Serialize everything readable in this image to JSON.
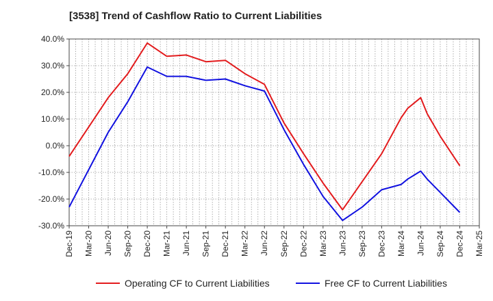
{
  "chart_data": {
    "type": "line",
    "title": "[3538]  Trend of Cashflow Ratio to Current Liabilities",
    "xlabel": "",
    "ylabel": "",
    "ylim": [
      -30,
      40
    ],
    "y_ticks": [
      40,
      30,
      20,
      10,
      0,
      -10,
      -20,
      -30
    ],
    "y_tick_labels": [
      "40.0%",
      "30.0%",
      "20.0%",
      "10.0%",
      "0.0%",
      "-10.0%",
      "-20.0%",
      "-30.0%"
    ],
    "x_ticks": [
      "Dec-19",
      "Mar-20",
      "Jun-20",
      "Sep-20",
      "Dec-20",
      "Mar-21",
      "Jun-21",
      "Sep-21",
      "Dec-21",
      "Mar-22",
      "Jun-22",
      "Sep-22",
      "Dec-22",
      "Mar-23",
      "Jun-23",
      "Sep-23",
      "Dec-23",
      "Mar-24",
      "Jun-24",
      "Sep-24",
      "Dec-24",
      "Mar-25"
    ],
    "grid": true,
    "legend_position": "bottom",
    "series": [
      {
        "name": "Operating CF to Current Liabilities",
        "color": "#e31a1c",
        "x": [
          "Dec-19",
          "Mar-20",
          "Jun-20",
          "Sep-20",
          "Dec-20",
          "Mar-21",
          "Jun-21",
          "Sep-21",
          "Dec-21",
          "Mar-22",
          "Jun-22",
          "Sep-22",
          "Dec-22",
          "Mar-23",
          "Jun-23",
          "Sep-23",
          "Dec-23",
          "Mar-24",
          "Apr-24",
          "Jun-24",
          "Jul-24",
          "Sep-24",
          "Dec-24"
        ],
        "values": [
          -4.0,
          7.0,
          18.0,
          27.0,
          38.5,
          33.5,
          34.0,
          31.5,
          32.0,
          27.0,
          23.0,
          8.5,
          -3.0,
          -14.0,
          -24.0,
          -13.5,
          -3.0,
          10.5,
          14.0,
          18.0,
          12.0,
          3.5,
          -7.5
        ]
      },
      {
        "name": "Free CF to Current Liabilities",
        "color": "#1010e0",
        "x": [
          "Dec-19",
          "Mar-20",
          "Jun-20",
          "Sep-20",
          "Dec-20",
          "Mar-21",
          "Jun-21",
          "Sep-21",
          "Dec-21",
          "Mar-22",
          "Jun-22",
          "Sep-22",
          "Dec-22",
          "Mar-23",
          "Jun-23",
          "Sep-23",
          "Dec-23",
          "Mar-24",
          "Apr-24",
          "Jun-24",
          "Jul-24",
          "Sep-24",
          "Dec-24"
        ],
        "values": [
          -23.0,
          -9.0,
          5.0,
          16.5,
          29.5,
          26.0,
          26.0,
          24.5,
          25.0,
          22.5,
          20.5,
          6.0,
          -7.0,
          -19.0,
          -28.0,
          -23.0,
          -16.5,
          -14.5,
          -12.5,
          -9.5,
          -12.5,
          -17.5,
          -25.0
        ]
      }
    ]
  }
}
